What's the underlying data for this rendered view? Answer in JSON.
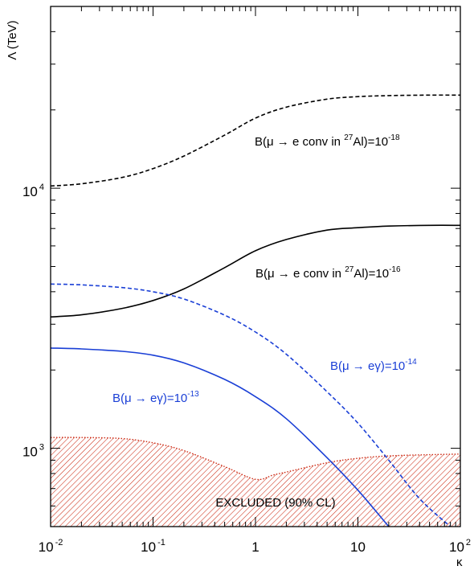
{
  "chart_data": {
    "type": "line",
    "xlabel": "κ",
    "ylabel": "Λ (TeV)",
    "xscale": "log",
    "yscale": "log",
    "xlim": [
      0.01,
      100
    ],
    "ylim": [
      500,
      50000
    ],
    "x_ticks": [
      {
        "value": 0.01,
        "base": "10",
        "exp": "-2"
      },
      {
        "value": 0.1,
        "base": "10",
        "exp": "-1"
      },
      {
        "value": 1,
        "base": "1",
        "exp": ""
      },
      {
        "value": 10,
        "base": "10",
        "exp": ""
      },
      {
        "value": 100,
        "base": "10",
        "exp": "2"
      }
    ],
    "y_ticks": [
      {
        "value": 1000,
        "base": "10",
        "exp": "3"
      },
      {
        "value": 10000,
        "base": "10",
        "exp": "4"
      }
    ],
    "grid": false,
    "series": [
      {
        "key": "conv18",
        "color": "#000000",
        "dash": "dashed",
        "x": [
          0.01,
          0.02,
          0.05,
          0.1,
          0.2,
          0.5,
          1,
          2,
          5,
          10,
          20,
          50,
          100
        ],
        "y": [
          10200,
          10400,
          11000,
          11900,
          13300,
          16000,
          18600,
          20500,
          22000,
          22500,
          22700,
          22800,
          22800
        ]
      },
      {
        "key": "conv16",
        "color": "#000000",
        "dash": "solid",
        "x": [
          0.01,
          0.02,
          0.05,
          0.1,
          0.2,
          0.5,
          1,
          2,
          5,
          10,
          20,
          50,
          100
        ],
        "y": [
          3200,
          3260,
          3450,
          3700,
          4100,
          4950,
          5750,
          6350,
          6900,
          7050,
          7150,
          7200,
          7200
        ]
      },
      {
        "key": "meg14",
        "color": "#1a3fd6",
        "dash": "dashed",
        "x": [
          0.01,
          0.02,
          0.05,
          0.1,
          0.2,
          0.5,
          1,
          2,
          5,
          10,
          20,
          40,
          80
        ],
        "y": [
          4280,
          4250,
          4150,
          4000,
          3750,
          3250,
          2800,
          2300,
          1650,
          1250,
          900,
          640,
          500
        ]
      },
      {
        "key": "meg13",
        "color": "#1a3fd6",
        "dash": "solid",
        "x": [
          0.01,
          0.02,
          0.05,
          0.1,
          0.2,
          0.5,
          1,
          2,
          5,
          10,
          20
        ],
        "y": [
          2430,
          2410,
          2360,
          2280,
          2130,
          1840,
          1580,
          1300,
          920,
          690,
          500
        ]
      }
    ],
    "excluded_region": {
      "label": "EXCLUDED (90% CL)",
      "color": "#cc2a14",
      "x": [
        0.01,
        0.02,
        0.05,
        0.1,
        0.2,
        0.5,
        1,
        1.5,
        2,
        5,
        10,
        20,
        50,
        100
      ],
      "y": [
        1100,
        1100,
        1090,
        1050,
        980,
        850,
        760,
        790,
        810,
        880,
        915,
        935,
        945,
        950
      ]
    },
    "annotations": [
      {
        "key": "conv18",
        "color": "#000000",
        "text": "B(μ → e conv in ",
        "sup1": "27",
        "mid": "Al)=10",
        "sup2": "-18"
      },
      {
        "key": "conv16",
        "color": "#000000",
        "text": "B(μ → e conv in ",
        "sup1": "27",
        "mid": "Al)=10",
        "sup2": "-16"
      },
      {
        "key": "meg14",
        "color": "#1a3fd6",
        "text": "B(μ → eγ)=10",
        "sup1": "-14",
        "mid": "",
        "sup2": ""
      },
      {
        "key": "meg13",
        "color": "#1a3fd6",
        "text": "B(μ → eγ)=10",
        "sup1": "-13",
        "mid": "",
        "sup2": ""
      }
    ]
  }
}
